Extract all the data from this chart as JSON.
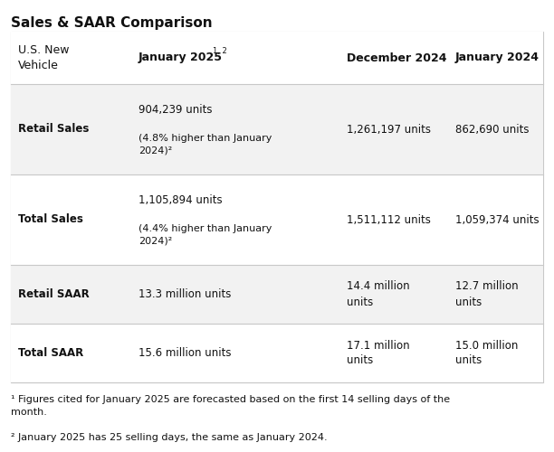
{
  "title": "Sales & SAAR Comparison",
  "background_color": "#ffffff",
  "table_border_color": "#c8c8c8",
  "rows": [
    {
      "label": "Retail Sales",
      "jan2025_line1": "904,239 units",
      "jan2025_line2": "(4.8% higher than January\n2024)²",
      "dec2024": "1,261,197 units",
      "jan2024": "862,690 units",
      "bg": "#f2f2f2"
    },
    {
      "label": "Total Sales",
      "jan2025_line1": "1,105,894 units",
      "jan2025_line2": "(4.4% higher than January\n2024)²",
      "dec2024": "1,511,112 units",
      "jan2024": "1,059,374 units",
      "bg": "#ffffff"
    },
    {
      "label": "Retail SAAR",
      "jan2025_line1": "13.3 million units",
      "jan2025_line2": "",
      "dec2024": "14.4 million\nunits",
      "jan2024": "12.7 million\nunits",
      "bg": "#f2f2f2"
    },
    {
      "label": "Total SAAR",
      "jan2025_line1": "15.6 million units",
      "jan2025_line2": "",
      "dec2024": "17.1 million\nunits",
      "jan2024": "15.0 million\nunits",
      "bg": "#ffffff"
    }
  ],
  "footnote1": "¹ Figures cited for January 2025 are forecasted based on the first 14 selling days of the\nmonth.",
  "footnote2": "² January 2025 has 25 selling days, the same as January 2024.",
  "title_fontsize": 11,
  "header_fontsize": 9,
  "cell_fontsize": 8.5,
  "footnote_fontsize": 8
}
